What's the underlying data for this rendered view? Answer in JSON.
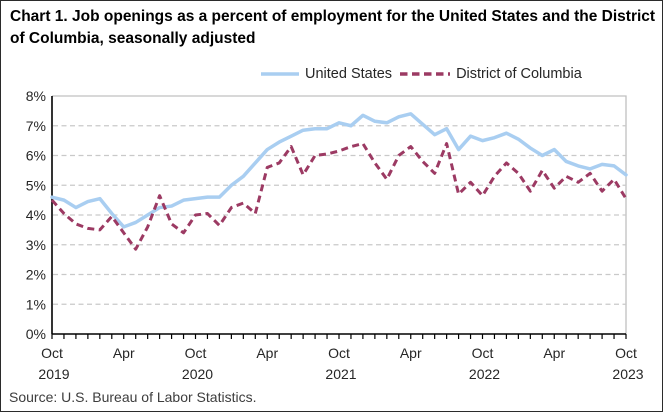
{
  "title": "Chart 1. Job openings as a percent of employment for the United States and the District of Columbia, seasonally adjusted",
  "source": "Source: U.S. Bureau of Labor Statistics.",
  "colors": {
    "us_line": "#A9CEF1",
    "dc_line": "#9C3A63",
    "grid": "#c9c9c9",
    "axis": "#000000",
    "plot_border": "#c0c0c0",
    "tick_text": "#262626"
  },
  "chart_data": {
    "type": "line",
    "title": "Chart 1. Job openings as a percent of employment for the United States and the District of Columbia, seasonally adjusted",
    "xlabel": "",
    "ylabel": "",
    "ylim": [
      0,
      8
    ],
    "grid": true,
    "legend_position": "top",
    "y_tick_labels": [
      "0%",
      "1%",
      "2%",
      "3%",
      "4%",
      "5%",
      "6%",
      "7%",
      "8%"
    ],
    "x": [
      "Oct 2019",
      "Nov 2019",
      "Dec 2019",
      "Jan 2020",
      "Feb 2020",
      "Mar 2020",
      "Apr 2020",
      "May 2020",
      "Jun 2020",
      "Jul 2020",
      "Aug 2020",
      "Sep 2020",
      "Oct 2020",
      "Nov 2020",
      "Dec 2020",
      "Jan 2021",
      "Feb 2021",
      "Mar 2021",
      "Apr 2021",
      "May 2021",
      "Jun 2021",
      "Jul 2021",
      "Aug 2021",
      "Sep 2021",
      "Oct 2021",
      "Nov 2021",
      "Dec 2021",
      "Jan 2022",
      "Feb 2022",
      "Mar 2022",
      "Apr 2022",
      "May 2022",
      "Jun 2022",
      "Jul 2022",
      "Aug 2022",
      "Sep 2022",
      "Oct 2022",
      "Nov 2022",
      "Dec 2022",
      "Jan 2023",
      "Feb 2023",
      "Mar 2023",
      "Apr 2023",
      "May 2023",
      "Jun 2023",
      "Jul 2023",
      "Aug 2023",
      "Sep 2023",
      "Oct 2023"
    ],
    "x_major_ticks": [
      {
        "index": 0,
        "line1": "Oct",
        "line2": "2019"
      },
      {
        "index": 6,
        "line1": "Apr",
        "line2": ""
      },
      {
        "index": 12,
        "line1": "Oct",
        "line2": "2020"
      },
      {
        "index": 18,
        "line1": "Apr",
        "line2": ""
      },
      {
        "index": 24,
        "line1": "Oct",
        "line2": "2021"
      },
      {
        "index": 30,
        "line1": "Apr",
        "line2": ""
      },
      {
        "index": 36,
        "line1": "Oct",
        "line2": "2022"
      },
      {
        "index": 42,
        "line1": "Apr",
        "line2": ""
      },
      {
        "index": 48,
        "line1": "Oct",
        "line2": "2023"
      }
    ],
    "series": [
      {
        "name": "United States",
        "color": "#A9CEF1",
        "dashed": false,
        "values": [
          4.6,
          4.5,
          4.25,
          4.45,
          4.55,
          4.05,
          3.6,
          3.75,
          4.0,
          4.25,
          4.3,
          4.5,
          4.55,
          4.6,
          4.6,
          5.0,
          5.3,
          5.75,
          6.2,
          6.45,
          6.65,
          6.85,
          6.9,
          6.9,
          7.1,
          7.0,
          7.35,
          7.15,
          7.1,
          7.3,
          7.4,
          7.05,
          6.7,
          6.9,
          6.2,
          6.65,
          6.5,
          6.6,
          6.75,
          6.55,
          6.25,
          6.0,
          6.2,
          5.8,
          5.65,
          5.55,
          5.7,
          5.65,
          5.35
        ]
      },
      {
        "name": "District of Columbia",
        "color": "#9C3A63",
        "dashed": true,
        "values": [
          4.5,
          4.05,
          3.7,
          3.55,
          3.5,
          3.95,
          3.4,
          2.85,
          3.6,
          4.65,
          3.7,
          3.4,
          4.0,
          4.05,
          3.65,
          4.25,
          4.4,
          4.05,
          5.6,
          5.75,
          6.3,
          5.35,
          6.0,
          6.05,
          6.15,
          6.3,
          6.4,
          5.75,
          5.2,
          6.0,
          6.3,
          5.8,
          5.4,
          6.4,
          4.7,
          5.1,
          4.65,
          5.3,
          5.75,
          5.4,
          4.8,
          5.5,
          4.9,
          5.3,
          5.1,
          5.4,
          4.8,
          5.2,
          4.55
        ]
      }
    ]
  }
}
